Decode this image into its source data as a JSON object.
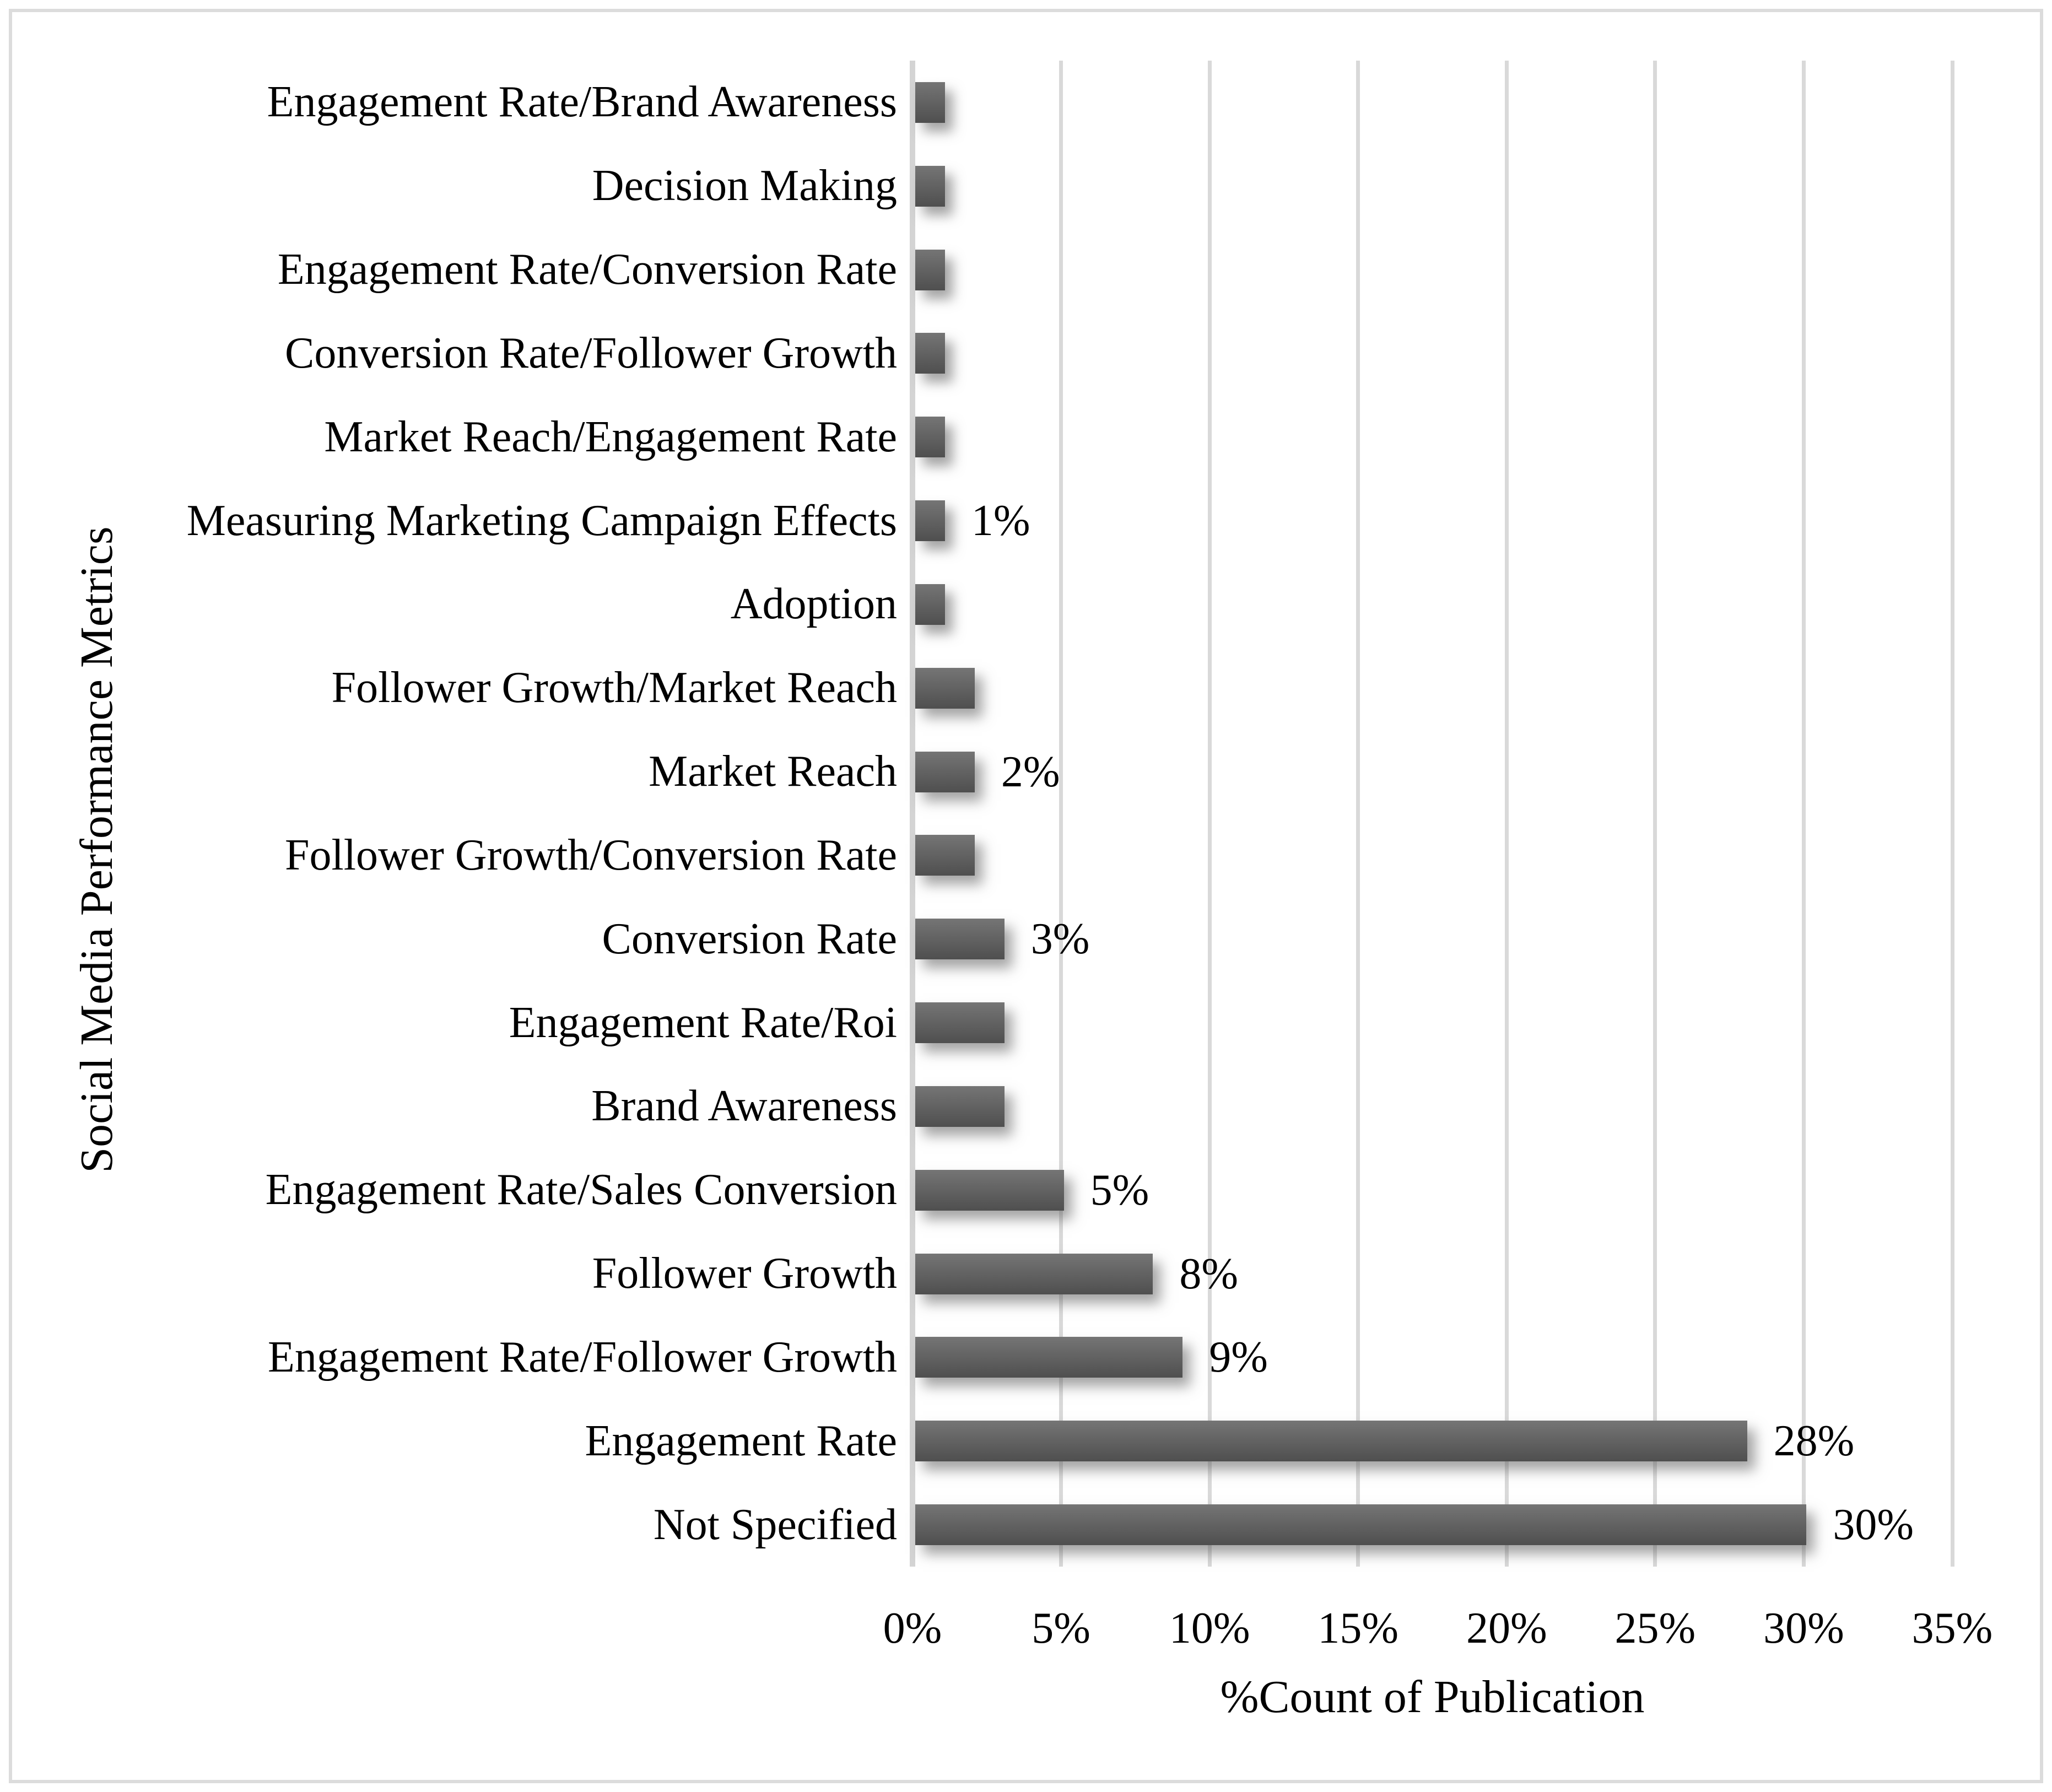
{
  "chart_data": {
    "type": "bar",
    "orientation": "horizontal",
    "title": "",
    "xlabel": "%Count of Publication",
    "ylabel": "Social Media Performance Metrics",
    "xlim": [
      0,
      35
    ],
    "x_tick_step_pct": 5,
    "x_tick_labels": [
      "0%",
      "5%",
      "10%",
      "15%",
      "20%",
      "25%",
      "30%",
      "35%"
    ],
    "grid": true,
    "legend": "none",
    "categories": [
      "Engagement Rate/Brand Awareness",
      "Decision Making",
      "Engagement Rate/Conversion Rate",
      "Conversion Rate/Follower Growth",
      "Market Reach/Engagement Rate",
      "Measuring Marketing Campaign Effects",
      "Adoption",
      "Follower Growth/Market Reach",
      "Market Reach",
      "Follower Growth/Conversion Rate",
      "Conversion Rate",
      "Engagement Rate/Roi",
      "Brand Awareness",
      "Engagement Rate/Sales Conversion",
      "Follower Growth",
      "Engagement Rate/Follower Growth",
      "Engagement Rate",
      "Not Specified"
    ],
    "values": [
      1,
      1,
      1,
      1,
      1,
      1,
      1,
      2,
      2,
      2,
      3,
      3,
      3,
      5,
      8,
      9,
      28,
      30
    ],
    "bar_labels": [
      "",
      "",
      "",
      "",
      "",
      "1%",
      "",
      "",
      "2%",
      "",
      "3%",
      "",
      "",
      "5%",
      "8%",
      "9%",
      "28%",
      "30%"
    ],
    "colors": {
      "bar": "#595959",
      "gridline": "#d9d9d9",
      "frame_border": "#dcdcdc",
      "text": "#000000",
      "background": "#ffffff"
    }
  }
}
